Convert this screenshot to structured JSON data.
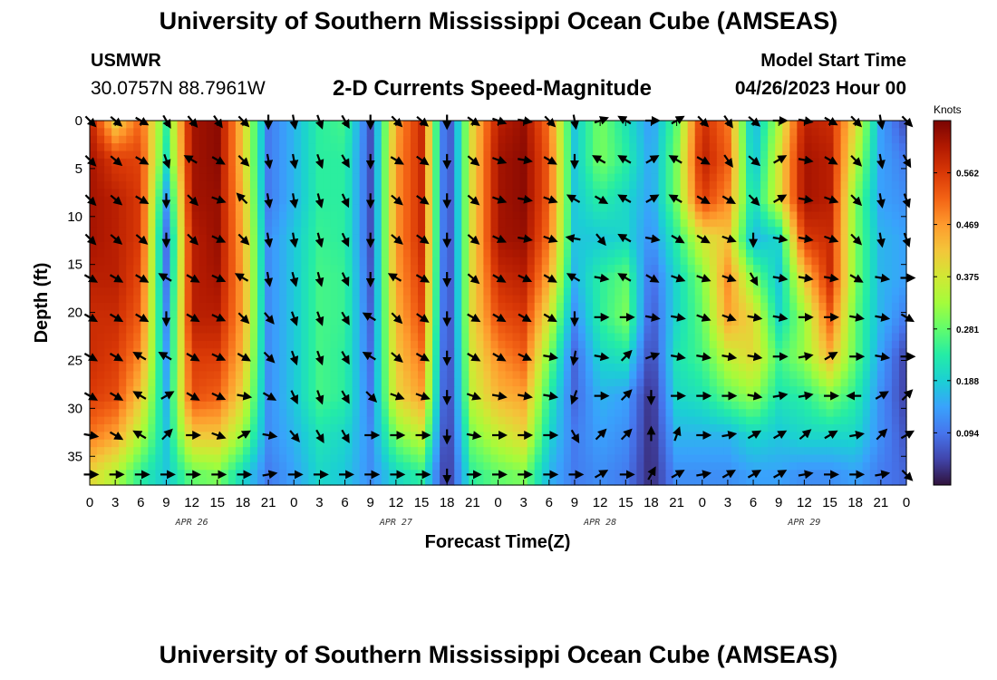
{
  "header": {
    "title": "University of Southern Mississippi Ocean Cube (AMSEAS)",
    "station": "USMWR",
    "coords": "30.0757N  88.7961W",
    "subtitle": "2-D Currents Speed-Magnitude",
    "model_start_label": "Model Start Time",
    "model_start_value": "04/26/2023 Hour 00"
  },
  "footer": {
    "title": "University of Southern Mississippi Ocean Cube (AMSEAS)"
  },
  "colors": {
    "scale": [
      "#30123b",
      "#4145ab",
      "#4675ed",
      "#39a2fc",
      "#1bcfd4",
      "#24eca6",
      "#61fc6c",
      "#a4fc3b",
      "#d1e834",
      "#f3c63a",
      "#fe9b2d",
      "#f36315",
      "#d93806",
      "#b11901",
      "#7a0402"
    ]
  },
  "chart_data": {
    "type": "heatmap",
    "title": "2-D Currents Speed-Magnitude",
    "xlabel": "Forecast Time(Z)",
    "ylabel": "Depth (ft)",
    "colorbar_unit": "Knots",
    "colorbar_ticks": [
      "0.562",
      "0.469",
      "0.375",
      "0.281",
      "0.188",
      "0.094"
    ],
    "colorbar_tick_values": [
      0.562,
      0.469,
      0.375,
      0.281,
      0.188,
      0.094
    ],
    "value_range": [
      0.0,
      0.656
    ],
    "x_hours_range": [
      0,
      96
    ],
    "x_tick_labels": [
      "0",
      "3",
      "6",
      "9",
      "12",
      "15",
      "18",
      "21",
      "0",
      "3",
      "6",
      "9",
      "12",
      "15",
      "18",
      "21",
      "0",
      "3",
      "6",
      "9",
      "12",
      "15",
      "18",
      "21",
      "0",
      "3",
      "6",
      "9",
      "12",
      "15",
      "18",
      "21",
      "0"
    ],
    "day_labels": [
      {
        "label": "APR 26",
        "hour": 12
      },
      {
        "label": "APR 27",
        "hour": 36
      },
      {
        "label": "APR 28",
        "hour": 60
      },
      {
        "label": "APR 29",
        "hour": 84
      }
    ],
    "y_range_ft": [
      0,
      38
    ],
    "y_ticks": [
      0,
      5,
      10,
      15,
      20,
      25,
      30,
      35
    ],
    "depth_levels_ft": [
      0,
      4.1,
      8.2,
      12.3,
      16.4,
      20.5,
      24.6,
      28.7,
      32.8,
      36.9
    ],
    "times_hours": [
      0,
      3,
      6,
      9,
      12,
      15,
      18,
      21,
      24,
      27,
      30,
      33,
      36,
      39,
      42,
      45,
      48,
      51,
      54,
      57,
      60,
      63,
      66,
      69,
      72,
      75,
      78,
      81,
      84,
      87,
      90,
      93,
      96
    ],
    "speed_knots": [
      [
        0.6,
        0.4,
        0.52,
        0.25,
        0.62,
        0.64,
        0.42,
        0.1,
        0.16,
        0.24,
        0.26,
        0.06,
        0.46,
        0.58,
        0.02,
        0.4,
        0.6,
        0.63,
        0.5,
        0.18,
        0.3,
        0.22,
        0.13,
        0.28,
        0.58,
        0.5,
        0.15,
        0.34,
        0.6,
        0.58,
        0.4,
        0.14,
        0.05
      ],
      [
        0.62,
        0.56,
        0.55,
        0.22,
        0.62,
        0.64,
        0.42,
        0.1,
        0.16,
        0.24,
        0.24,
        0.06,
        0.47,
        0.58,
        0.02,
        0.4,
        0.62,
        0.64,
        0.52,
        0.18,
        0.3,
        0.24,
        0.14,
        0.3,
        0.6,
        0.52,
        0.16,
        0.38,
        0.62,
        0.6,
        0.35,
        0.14,
        0.1
      ],
      [
        0.62,
        0.6,
        0.56,
        0.14,
        0.62,
        0.63,
        0.44,
        0.1,
        0.16,
        0.24,
        0.24,
        0.06,
        0.47,
        0.58,
        0.02,
        0.4,
        0.62,
        0.64,
        0.52,
        0.18,
        0.24,
        0.2,
        0.14,
        0.3,
        0.56,
        0.48,
        0.2,
        0.38,
        0.62,
        0.6,
        0.3,
        0.14,
        0.12
      ],
      [
        0.62,
        0.6,
        0.56,
        0.09,
        0.6,
        0.63,
        0.45,
        0.12,
        0.18,
        0.25,
        0.24,
        0.06,
        0.47,
        0.58,
        0.02,
        0.4,
        0.62,
        0.63,
        0.5,
        0.18,
        0.18,
        0.2,
        0.12,
        0.24,
        0.38,
        0.42,
        0.16,
        0.2,
        0.56,
        0.58,
        0.3,
        0.16,
        0.14
      ],
      [
        0.6,
        0.6,
        0.54,
        0.1,
        0.6,
        0.62,
        0.46,
        0.12,
        0.18,
        0.26,
        0.25,
        0.07,
        0.46,
        0.56,
        0.02,
        0.4,
        0.58,
        0.6,
        0.45,
        0.16,
        0.24,
        0.28,
        0.08,
        0.2,
        0.3,
        0.48,
        0.3,
        0.18,
        0.42,
        0.58,
        0.3,
        0.16,
        0.14
      ],
      [
        0.58,
        0.58,
        0.52,
        0.12,
        0.6,
        0.6,
        0.46,
        0.12,
        0.18,
        0.26,
        0.25,
        0.08,
        0.44,
        0.54,
        0.02,
        0.4,
        0.54,
        0.56,
        0.38,
        0.12,
        0.24,
        0.3,
        0.06,
        0.2,
        0.28,
        0.46,
        0.4,
        0.2,
        0.32,
        0.52,
        0.28,
        0.16,
        0.1
      ],
      [
        0.58,
        0.56,
        0.48,
        0.14,
        0.56,
        0.56,
        0.44,
        0.12,
        0.18,
        0.26,
        0.24,
        0.09,
        0.42,
        0.5,
        0.02,
        0.38,
        0.48,
        0.52,
        0.3,
        0.08,
        0.2,
        0.22,
        0.04,
        0.22,
        0.26,
        0.36,
        0.4,
        0.26,
        0.32,
        0.44,
        0.28,
        0.14,
        0.04
      ],
      [
        0.56,
        0.54,
        0.42,
        0.16,
        0.54,
        0.52,
        0.4,
        0.12,
        0.18,
        0.26,
        0.24,
        0.1,
        0.4,
        0.46,
        0.02,
        0.36,
        0.44,
        0.46,
        0.24,
        0.08,
        0.16,
        0.14,
        0.02,
        0.2,
        0.22,
        0.28,
        0.32,
        0.22,
        0.24,
        0.3,
        0.24,
        0.12,
        0.04
      ],
      [
        0.5,
        0.46,
        0.34,
        0.18,
        0.42,
        0.42,
        0.32,
        0.12,
        0.16,
        0.22,
        0.2,
        0.12,
        0.3,
        0.36,
        0.02,
        0.3,
        0.36,
        0.4,
        0.2,
        0.1,
        0.14,
        0.12,
        0.02,
        0.16,
        0.16,
        0.16,
        0.2,
        0.18,
        0.2,
        0.2,
        0.2,
        0.12,
        0.06
      ],
      [
        0.4,
        0.34,
        0.24,
        0.18,
        0.28,
        0.3,
        0.2,
        0.1,
        0.14,
        0.2,
        0.18,
        0.12,
        0.2,
        0.24,
        0.02,
        0.24,
        0.28,
        0.3,
        0.16,
        0.1,
        0.12,
        0.1,
        0.02,
        0.12,
        0.12,
        0.12,
        0.14,
        0.14,
        0.12,
        0.12,
        0.14,
        0.1,
        0.08
      ]
    ],
    "direction_deg": [
      [
        135,
        130,
        120,
        150,
        140,
        145,
        135,
        180,
        170,
        160,
        150,
        180,
        135,
        130,
        180,
        125,
        110,
        100,
        135,
        170,
        70,
        300,
        90,
        60,
        135,
        145,
        130,
        90,
        100,
        120,
        135,
        170,
        135
      ],
      [
        135,
        130,
        120,
        160,
        300,
        120,
        135,
        170,
        170,
        160,
        150,
        180,
        120,
        125,
        180,
        130,
        110,
        100,
        120,
        180,
        300,
        300,
        60,
        300,
        120,
        145,
        130,
        60,
        100,
        120,
        135,
        170,
        150
      ],
      [
        135,
        130,
        120,
        180,
        135,
        110,
        315,
        170,
        170,
        165,
        155,
        180,
        130,
        125,
        180,
        130,
        110,
        100,
        110,
        300,
        120,
        300,
        60,
        300,
        120,
        120,
        135,
        60,
        100,
        110,
        135,
        170,
        160
      ],
      [
        135,
        130,
        130,
        180,
        135,
        115,
        135,
        170,
        170,
        165,
        155,
        180,
        130,
        125,
        180,
        130,
        115,
        100,
        110,
        280,
        140,
        300,
        100,
        120,
        120,
        110,
        180,
        100,
        100,
        110,
        135,
        170,
        160
      ],
      [
        120,
        120,
        120,
        300,
        120,
        115,
        300,
        170,
        165,
        165,
        155,
        180,
        300,
        120,
        180,
        130,
        120,
        115,
        120,
        300,
        100,
        300,
        120,
        110,
        110,
        110,
        150,
        100,
        100,
        100,
        120,
        100,
        90
      ],
      [
        120,
        120,
        120,
        180,
        120,
        115,
        135,
        140,
        160,
        160,
        150,
        300,
        135,
        125,
        180,
        120,
        120,
        120,
        120,
        180,
        90,
        90,
        100,
        100,
        110,
        110,
        100,
        100,
        90,
        90,
        100,
        100,
        120
      ],
      [
        120,
        120,
        300,
        300,
        120,
        115,
        120,
        135,
        160,
        160,
        150,
        300,
        130,
        120,
        180,
        120,
        120,
        115,
        100,
        190,
        100,
        45,
        70,
        100,
        100,
        100,
        100,
        90,
        80,
        60,
        90,
        100,
        90
      ],
      [
        120,
        120,
        300,
        60,
        120,
        115,
        100,
        120,
        155,
        160,
        150,
        135,
        110,
        110,
        180,
        110,
        100,
        100,
        100,
        200,
        90,
        45,
        180,
        90,
        90,
        90,
        100,
        80,
        80,
        90,
        270,
        60,
        45
      ],
      [
        100,
        120,
        300,
        45,
        90,
        110,
        60,
        100,
        140,
        150,
        150,
        90,
        90,
        90,
        180,
        100,
        90,
        90,
        90,
        150,
        45,
        45,
        0,
        20,
        90,
        80,
        60,
        60,
        50,
        60,
        80,
        45,
        60
      ],
      [
        90,
        90,
        90,
        90,
        90,
        90,
        90,
        80,
        90,
        90,
        90,
        90,
        90,
        90,
        180,
        90,
        90,
        90,
        90,
        90,
        60,
        90,
        30,
        60,
        80,
        60,
        60,
        60,
        80,
        90,
        90,
        80,
        135
      ]
    ]
  }
}
